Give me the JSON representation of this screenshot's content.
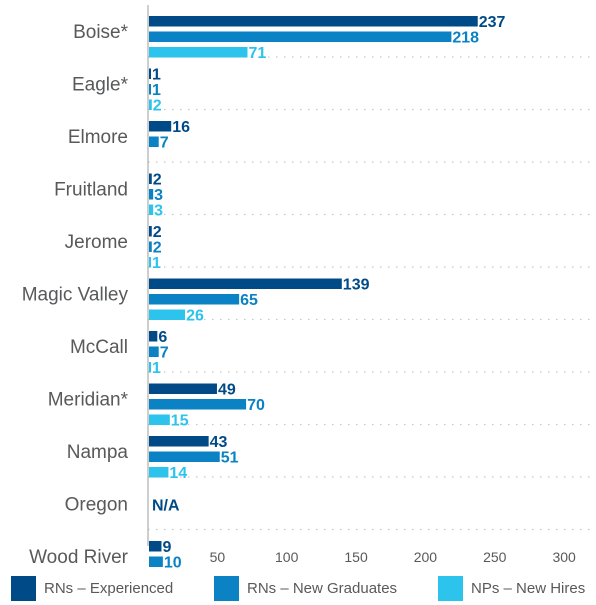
{
  "chart_data": {
    "type": "bar",
    "orientation": "horizontal",
    "categories": [
      "Boise*",
      "Eagle*",
      "Elmore",
      "Fruitland",
      "Jerome",
      "Magic Valley",
      "McCall",
      "Meridian*",
      "Nampa",
      "Oregon",
      "Wood River"
    ],
    "series": [
      {
        "name": "RNs – Experienced",
        "color": "#004b87",
        "values": [
          237,
          1,
          16,
          2,
          2,
          139,
          6,
          49,
          43,
          null,
          9
        ]
      },
      {
        "name": "RNs – New Graduates",
        "color": "#0a82c4",
        "values": [
          218,
          1,
          7,
          3,
          2,
          65,
          7,
          70,
          51,
          null,
          10
        ]
      },
      {
        "name": "NPs – New Hires",
        "color": "#2cc3ec",
        "values": [
          71,
          2,
          null,
          3,
          1,
          26,
          1,
          15,
          14,
          null,
          null
        ]
      }
    ],
    "annotations": [
      {
        "category": "Oregon",
        "text": "N/A"
      }
    ],
    "x_ticks": [
      50,
      100,
      150,
      200,
      250,
      300
    ],
    "xlim": [
      0,
      310
    ],
    "grid": "horizontal dotted separators between categories",
    "legend": "bottom"
  }
}
